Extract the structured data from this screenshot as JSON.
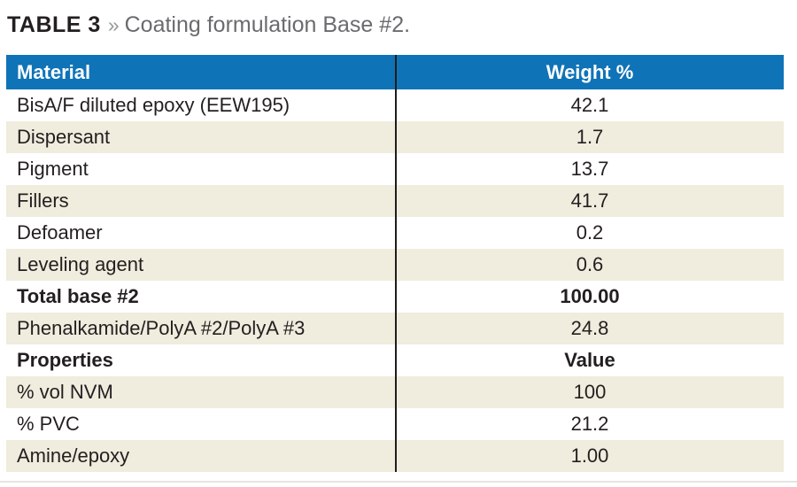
{
  "title": {
    "label": "TABLE 3",
    "separator": "»",
    "caption": "Coating formulation Base #2."
  },
  "table": {
    "columns": [
      "Material",
      "Weight %"
    ],
    "rows": [
      {
        "material": "BisA/F diluted epoxy (EEW195)",
        "value": "42.1",
        "bold": false
      },
      {
        "material": "Dispersant",
        "value": "1.7",
        "bold": false
      },
      {
        "material": "Pigment",
        "value": "13.7",
        "bold": false
      },
      {
        "material": "Fillers",
        "value": "41.7",
        "bold": false
      },
      {
        "material": "Defoamer",
        "value": "0.2",
        "bold": false
      },
      {
        "material": "Leveling agent",
        "value": "0.6",
        "bold": false
      },
      {
        "material": "Total base #2",
        "value": "100.00",
        "bold": true
      },
      {
        "material": "Phenalkamide/PolyA #2/PolyA #3",
        "value": "24.8",
        "bold": false
      },
      {
        "material": "Properties",
        "value": "Value",
        "bold": true
      },
      {
        "material": "% vol NVM",
        "value": "100",
        "bold": false
      },
      {
        "material": "% PVC",
        "value": "21.2",
        "bold": false
      },
      {
        "material": "Amine/epoxy",
        "value": "1.00",
        "bold": false
      }
    ]
  },
  "colors": {
    "header_bg": "#0f73b7",
    "header_text": "#ffffff",
    "row_alt_bg": "#f0ecde",
    "row_bg": "#ffffff",
    "body_text": "#231f20",
    "caption_text": "#6a6b6d",
    "chevron": "#97999b",
    "divider": "#1d1d1b",
    "bottom_rule": "#e5e4e0"
  },
  "chart_data": {
    "type": "table",
    "title": "TABLE 3 » Coating formulation Base #2.",
    "columns": [
      "Material",
      "Weight %"
    ],
    "rows": [
      [
        "BisA/F diluted epoxy (EEW195)",
        "42.1"
      ],
      [
        "Dispersant",
        "1.7"
      ],
      [
        "Pigment",
        "13.7"
      ],
      [
        "Fillers",
        "41.7"
      ],
      [
        "Defoamer",
        "0.2"
      ],
      [
        "Leveling agent",
        "0.6"
      ],
      [
        "Total base #2",
        "100.00"
      ],
      [
        "Phenalkamide/PolyA #2/PolyA #3",
        "24.8"
      ],
      [
        "Properties",
        "Value"
      ],
      [
        "% vol NVM",
        "100"
      ],
      [
        "% PVC",
        "21.2"
      ],
      [
        "Amine/epoxy",
        "1.00"
      ]
    ]
  }
}
